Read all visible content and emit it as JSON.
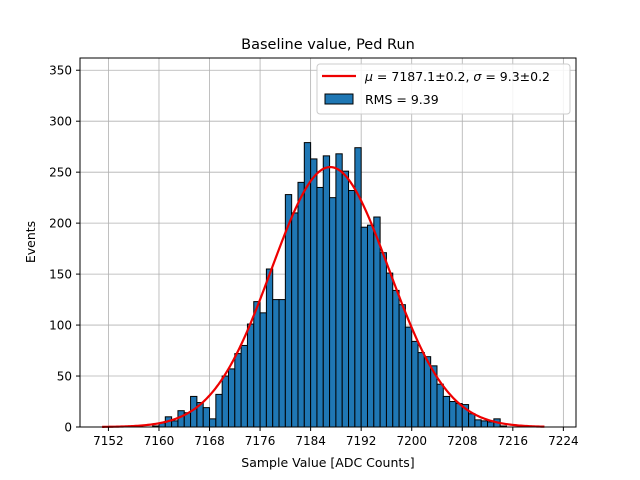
{
  "chart_data": {
    "type": "bar",
    "title": "Baseline value, Ped Run",
    "xlabel": "Sample Value [ADC Counts]",
    "ylabel": "Events",
    "xlim": [
      7147.5,
      7226
    ],
    "ylim": [
      0,
      362
    ],
    "xticks": [
      7152,
      7160,
      7168,
      7176,
      7184,
      7192,
      7200,
      7208,
      7216,
      7224
    ],
    "yticks": [
      0,
      50,
      100,
      150,
      200,
      250,
      300,
      350
    ],
    "grid": true,
    "legend_position": "top-right",
    "bin_width": 1,
    "bins": [
      7151,
      7152,
      7153,
      7154,
      7155,
      7156,
      7157,
      7158,
      7159,
      7160,
      7161,
      7162,
      7163,
      7164,
      7165,
      7166,
      7167,
      7168,
      7169,
      7170,
      7171,
      7172,
      7173,
      7174,
      7175,
      7176,
      7177,
      7178,
      7179,
      7180,
      7181,
      7182,
      7183,
      7184,
      7185,
      7186,
      7187,
      7188,
      7189,
      7190,
      7191,
      7192,
      7193,
      7194,
      7195,
      7196,
      7197,
      7198,
      7199,
      7200,
      7201,
      7202,
      7203,
      7204,
      7205,
      7206,
      7207,
      7208,
      7209,
      7210,
      7211,
      7212,
      7213,
      7214,
      7215,
      7216,
      7217,
      7218,
      7219,
      7220,
      7221
    ],
    "counts": [
      0,
      0,
      0,
      0,
      0,
      0,
      0,
      0,
      1,
      4,
      10,
      6,
      16,
      14,
      30,
      24,
      19,
      8,
      32,
      50,
      57,
      72,
      80,
      101,
      123,
      112,
      155,
      125,
      125,
      228,
      210,
      240,
      279,
      263,
      235,
      266,
      225,
      268,
      251,
      232,
      274,
      196,
      198,
      206,
      171,
      151,
      134,
      120,
      98,
      84,
      73,
      69,
      60,
      42,
      30,
      25,
      23,
      22,
      13,
      7,
      6,
      5,
      8,
      1,
      0,
      0,
      0,
      0,
      0,
      0,
      0
    ],
    "fit": {
      "type": "gaussian",
      "mu": 7187.1,
      "sigma": 9.3,
      "amplitude": 255,
      "x_range": [
        7151,
        7221
      ],
      "color": "#ee0000"
    },
    "bar_color": "#1f77b4",
    "bar_edge_color": "#000000",
    "legend": [
      {
        "label_math_mu": "μ",
        "label_rest": " = 7187.1±0.2, ",
        "label_math_sigma": "σ",
        "label_rest2": " = 9.3±0.2",
        "color": "#ee0000",
        "kind": "line"
      },
      {
        "label": "RMS = 9.39",
        "color": "#1f77b4",
        "kind": "patch"
      }
    ]
  }
}
